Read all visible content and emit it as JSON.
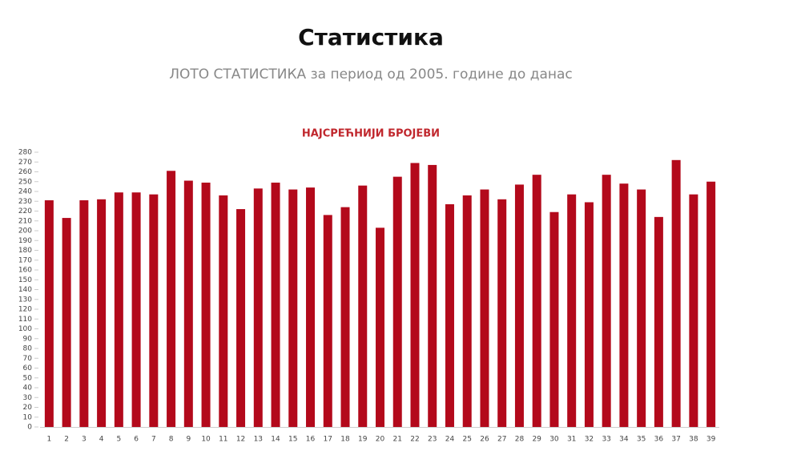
{
  "header": {
    "title": "Статистика",
    "subtitle": "ЛОТО СТАТИСТИКА за период од 2005. године до данас"
  },
  "chart_data": {
    "type": "bar",
    "title": "НАЈСРЕЋНИЈИ БРОЈЕВИ",
    "categories": [
      "1",
      "2",
      "3",
      "4",
      "5",
      "6",
      "7",
      "8",
      "9",
      "10",
      "11",
      "12",
      "13",
      "14",
      "15",
      "16",
      "17",
      "18",
      "19",
      "20",
      "21",
      "22",
      "23",
      "24",
      "25",
      "26",
      "27",
      "28",
      "29",
      "30",
      "31",
      "32",
      "33",
      "34",
      "35",
      "36",
      "37",
      "38",
      "39"
    ],
    "values": [
      231,
      213,
      231,
      232,
      239,
      239,
      237,
      261,
      251,
      249,
      236,
      222,
      243,
      249,
      242,
      244,
      216,
      224,
      246,
      203,
      255,
      269,
      267,
      227,
      236,
      242,
      232,
      247,
      257,
      219,
      237,
      229,
      257,
      248,
      242,
      214,
      272,
      237,
      250
    ],
    "color": "#b3091b",
    "ylim": [
      0,
      280
    ],
    "yticks": [
      0,
      10,
      20,
      30,
      40,
      50,
      60,
      70,
      80,
      90,
      100,
      110,
      120,
      130,
      140,
      150,
      160,
      170,
      180,
      190,
      200,
      210,
      220,
      230,
      240,
      250,
      260,
      270,
      280
    ],
    "grid": false
  }
}
